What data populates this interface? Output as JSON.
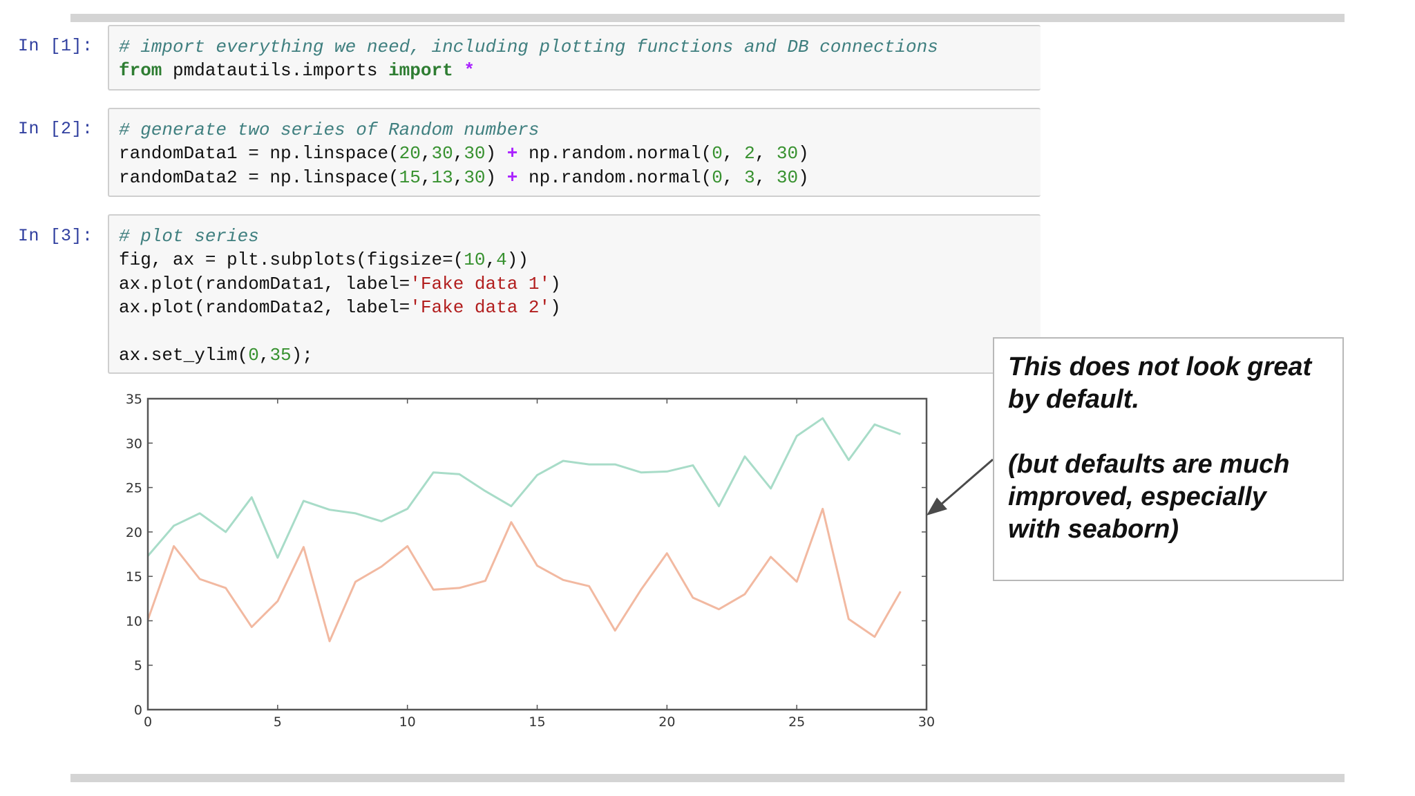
{
  "cells": [
    {
      "prompt": "In [1]:",
      "lines": [
        [
          {
            "t": "# import everything we need, including plotting functions and DB connections",
            "c": "cm"
          }
        ],
        [
          {
            "t": "from",
            "c": "kw"
          },
          {
            "t": " pmdatautils.imports ",
            "c": ""
          },
          {
            "t": "import",
            "c": "kw"
          },
          {
            "t": " ",
            "c": ""
          },
          {
            "t": "*",
            "c": "op"
          }
        ]
      ]
    },
    {
      "prompt": "In [2]:",
      "lines": [
        [
          {
            "t": "# generate two series of Random numbers",
            "c": "cm"
          }
        ],
        [
          {
            "t": "randomData1 = np.linspace(",
            "c": ""
          },
          {
            "t": "20",
            "c": "num"
          },
          {
            "t": ",",
            "c": ""
          },
          {
            "t": "30",
            "c": "num"
          },
          {
            "t": ",",
            "c": ""
          },
          {
            "t": "30",
            "c": "num"
          },
          {
            "t": ") ",
            "c": ""
          },
          {
            "t": "+",
            "c": "op"
          },
          {
            "t": " np.random.normal(",
            "c": ""
          },
          {
            "t": "0",
            "c": "num"
          },
          {
            "t": ", ",
            "c": ""
          },
          {
            "t": "2",
            "c": "num"
          },
          {
            "t": ", ",
            "c": ""
          },
          {
            "t": "30",
            "c": "num"
          },
          {
            "t": ")",
            "c": ""
          }
        ],
        [
          {
            "t": "randomData2 = np.linspace(",
            "c": ""
          },
          {
            "t": "15",
            "c": "num"
          },
          {
            "t": ",",
            "c": ""
          },
          {
            "t": "13",
            "c": "num"
          },
          {
            "t": ",",
            "c": ""
          },
          {
            "t": "30",
            "c": "num"
          },
          {
            "t": ") ",
            "c": ""
          },
          {
            "t": "+",
            "c": "op"
          },
          {
            "t": " np.random.normal(",
            "c": ""
          },
          {
            "t": "0",
            "c": "num"
          },
          {
            "t": ", ",
            "c": ""
          },
          {
            "t": "3",
            "c": "num"
          },
          {
            "t": ", ",
            "c": ""
          },
          {
            "t": "30",
            "c": "num"
          },
          {
            "t": ")",
            "c": ""
          }
        ]
      ]
    },
    {
      "prompt": "In [3]:",
      "lines": [
        [
          {
            "t": "# plot series",
            "c": "cm"
          }
        ],
        [
          {
            "t": "fig, ax = plt.subplots(figsize=(",
            "c": ""
          },
          {
            "t": "10",
            "c": "num"
          },
          {
            "t": ",",
            "c": ""
          },
          {
            "t": "4",
            "c": "num"
          },
          {
            "t": "))",
            "c": ""
          }
        ],
        [
          {
            "t": "ax.plot(randomData1, label=",
            "c": ""
          },
          {
            "t": "'Fake data 1'",
            "c": "str"
          },
          {
            "t": ")",
            "c": ""
          }
        ],
        [
          {
            "t": "ax.plot(randomData2, label=",
            "c": ""
          },
          {
            "t": "'Fake data 2'",
            "c": "str"
          },
          {
            "t": ")",
            "c": ""
          }
        ],
        [],
        [
          {
            "t": "ax.set_ylim(",
            "c": ""
          },
          {
            "t": "0",
            "c": "num"
          },
          {
            "t": ",",
            "c": ""
          },
          {
            "t": "35",
            "c": "num"
          },
          {
            "t": ");",
            "c": ""
          }
        ]
      ]
    }
  ],
  "annotation": {
    "headline": [
      "This does not look great",
      "by default."
    ],
    "note": [
      "(but defaults are much",
      "improved, especially",
      "with seaborn)"
    ]
  },
  "chart_data": {
    "type": "line",
    "x": [
      0,
      1,
      2,
      3,
      4,
      5,
      6,
      7,
      8,
      9,
      10,
      11,
      12,
      13,
      14,
      15,
      16,
      17,
      18,
      19,
      20,
      21,
      22,
      23,
      24,
      25,
      26,
      27,
      28,
      29
    ],
    "series": [
      {
        "color": "#a8dcc8",
        "values": [
          17.3,
          20.7,
          22.1,
          20.0,
          23.9,
          17.1,
          23.5,
          22.5,
          22.1,
          21.2,
          22.6,
          26.7,
          26.5,
          24.6,
          22.9,
          26.4,
          28.0,
          27.6,
          27.6,
          26.7,
          26.8,
          27.5,
          22.9,
          28.5,
          24.9,
          30.8,
          32.8,
          28.1,
          32.1,
          31.0
        ]
      },
      {
        "color": "#f2b9a1",
        "values": [
          10.1,
          18.4,
          14.7,
          13.7,
          9.3,
          12.2,
          18.3,
          7.7,
          14.4,
          16.1,
          18.4,
          13.5,
          13.7,
          14.5,
          21.1,
          16.2,
          14.6,
          13.9,
          8.9,
          13.5,
          17.6,
          12.6,
          11.3,
          13.0,
          17.2,
          14.4,
          22.6,
          10.2,
          8.2,
          13.3
        ]
      }
    ],
    "xlim": [
      0,
      30
    ],
    "ylim": [
      0,
      35
    ],
    "xticks": [
      0,
      5,
      10,
      15,
      20,
      25,
      30
    ],
    "yticks": [
      0,
      5,
      10,
      15,
      20,
      25,
      30,
      35
    ],
    "grid": false,
    "frame_color": "#555555",
    "arrow_color": "#4a4a4a"
  }
}
